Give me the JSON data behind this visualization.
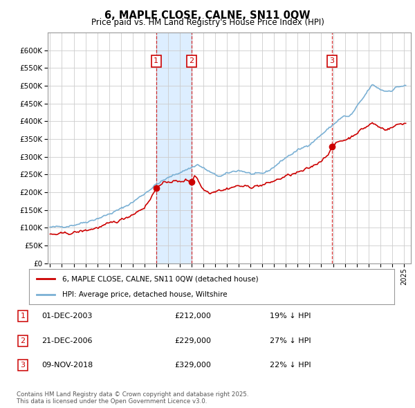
{
  "title": "6, MAPLE CLOSE, CALNE, SN11 0QW",
  "subtitle": "Price paid vs. HM Land Registry's House Price Index (HPI)",
  "legend_entries": [
    "6, MAPLE CLOSE, CALNE, SN11 0QW (detached house)",
    "HPI: Average price, detached house, Wiltshire"
  ],
  "transactions": [
    {
      "num": 1,
      "date": "01-DEC-2003",
      "date_val": 2004.0,
      "price": 212000,
      "pct": "19%",
      "dir": "↓"
    },
    {
      "num": 2,
      "date": "21-DEC-2006",
      "date_val": 2007.0,
      "price": 229000,
      "pct": "27%",
      "dir": "↓"
    },
    {
      "num": 3,
      "date": "09-NOV-2018",
      "date_val": 2018.9,
      "price": 329000,
      "pct": "22%",
      "dir": "↓"
    }
  ],
  "footnote": "Contains HM Land Registry data © Crown copyright and database right 2025.\nThis data is licensed under the Open Government Licence v3.0.",
  "red_color": "#cc0000",
  "blue_color": "#7ab0d4",
  "shade_color": "#ddeeff",
  "background_color": "#ffffff",
  "grid_color": "#cccccc",
  "ylim": [
    0,
    650000
  ],
  "yticks": [
    0,
    50000,
    100000,
    150000,
    200000,
    250000,
    300000,
    350000,
    400000,
    450000,
    500000,
    550000,
    600000
  ],
  "xlim_start": 1994.8,
  "xlim_end": 2025.6
}
